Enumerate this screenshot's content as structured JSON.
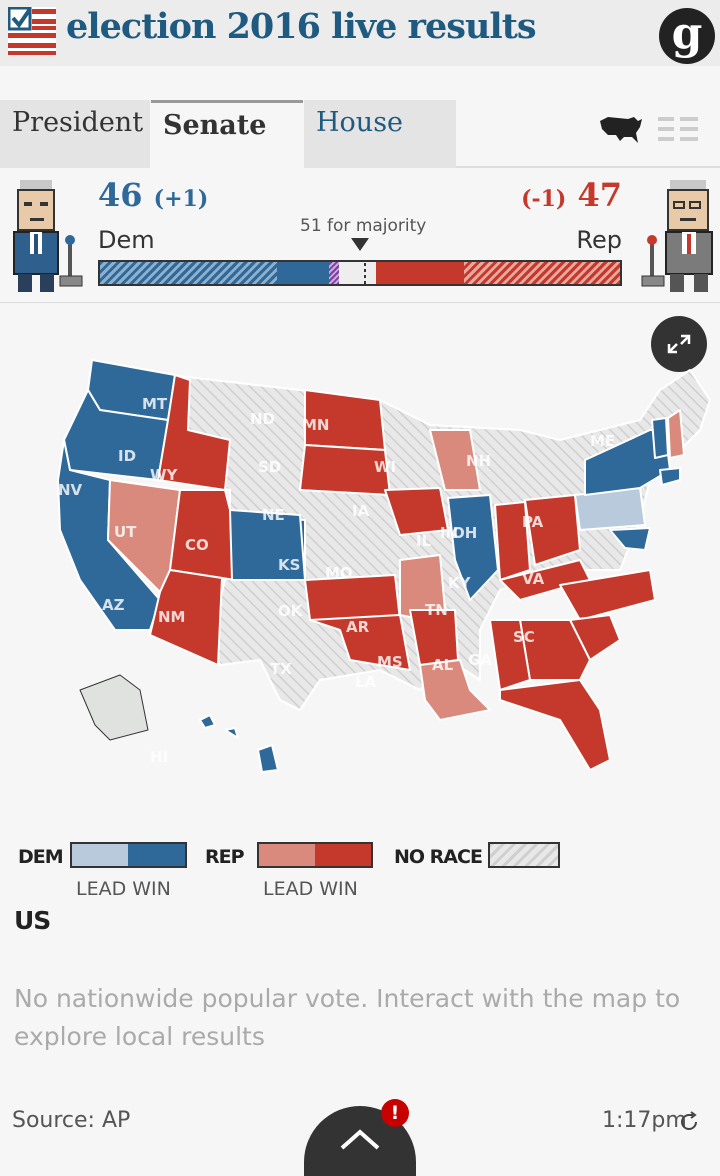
{
  "header": {
    "title": "election 2016 live results",
    "logo_letter": "g"
  },
  "tabs": [
    {
      "label": "President",
      "active": false
    },
    {
      "label": "Senate",
      "active": true
    },
    {
      "label": "House",
      "active": false
    }
  ],
  "view_toggle": {
    "map_icon": "us-map-icon",
    "list_icon": "list-icon"
  },
  "summary": {
    "dem": {
      "seats": "46",
      "change": "(+1)",
      "label": "Dem"
    },
    "rep": {
      "seats": "47",
      "change": "(-1)",
      "label": "Rep"
    },
    "majority_label": "51 for majority",
    "total_seats": 100,
    "majority_seats": 51,
    "segments": [
      {
        "party": "dem-hatched",
        "seats": 34
      },
      {
        "party": "dem-win",
        "seats": 10
      },
      {
        "party": "other",
        "seats": 2
      },
      {
        "party": "undecided",
        "seats": 7
      },
      {
        "party": "rep-win",
        "seats": 17
      },
      {
        "party": "rep-hatched",
        "seats": 30
      }
    ]
  },
  "map": {
    "state_labels": [
      "ID",
      "WY",
      "UT",
      "CO",
      "KS",
      "MO",
      "AZ",
      "NM",
      "OK",
      "AR",
      "TN",
      "MS",
      "AL",
      "GA",
      "SC",
      "LA",
      "PA",
      "OH",
      "IN",
      "IL",
      "KY",
      "VA",
      "IA",
      "WI",
      "SD",
      "ND",
      "MN",
      "MT",
      "NE",
      "NV",
      "ME",
      "NH",
      "HI",
      "TX"
    ],
    "colors": {
      "dem_win": "#2f6999",
      "dem_lead": "#b8cadb",
      "rep_win": "#c4392b",
      "rep_lead": "#d98a7c",
      "no_race": "#e4e4e4"
    }
  },
  "legend": {
    "dem_label": "DEM",
    "rep_label": "REP",
    "norace_label": "NO RACE",
    "dem_sub": "LEAD  WIN",
    "rep_sub": "LEAD  WIN"
  },
  "us": {
    "title": "US",
    "note": "No nationwide popular vote. Interact with the map to explore local results"
  },
  "footer": {
    "source": "Source: AP",
    "time": "1:17pm",
    "alert": "!"
  }
}
